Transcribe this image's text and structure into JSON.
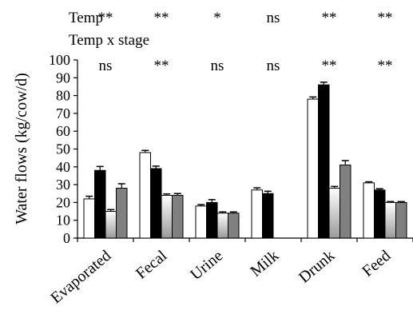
{
  "chart_data": {
    "type": "bar",
    "categories": [
      "Evaporated",
      "Fecal",
      "Urine",
      "Milk",
      "Drunk",
      "Feed"
    ],
    "series": [
      {
        "color": "#ffffff",
        "values": [
          22,
          48,
          18,
          27,
          78,
          31
        ],
        "errors": [
          1.5,
          1.2,
          0.8,
          1.2,
          1.2,
          0.6
        ]
      },
      {
        "color": "#000000",
        "values": [
          38,
          39,
          20,
          25,
          null,
          27
        ],
        "errors": [
          2.2,
          1.4,
          1.6,
          1.3,
          null,
          0.7
        ]
      },
      {
        "color": "gradient-gray",
        "values": [
          15,
          24,
          14,
          null,
          28,
          20
        ],
        "errors": [
          1.0,
          0.8,
          0.7,
          null,
          1.0,
          0.5
        ]
      },
      {
        "color": "#808080",
        "values": [
          28,
          24,
          14,
          null,
          41,
          20
        ],
        "errors": [
          2.5,
          1.0,
          0.7,
          null,
          2.5,
          0.5
        ]
      }
    ],
    "drunk_black_value": 86,
    "drunk_black_error": 1.5,
    "ylabel": "Water flows (kg/cow/d)",
    "ylim": [
      0,
      100
    ],
    "yticks": [
      0,
      10,
      20,
      30,
      40,
      50,
      60,
      70,
      80,
      90,
      100
    ],
    "significance": {
      "rows": [
        {
          "label": "Temp",
          "marks": [
            "**",
            "**",
            "*",
            "ns",
            "**",
            "**"
          ]
        },
        {
          "label": "Temp x stage",
          "marks": [
            "ns",
            "**",
            "ns",
            "ns",
            "**",
            "**"
          ]
        }
      ]
    },
    "grid": false,
    "legend": "none"
  }
}
